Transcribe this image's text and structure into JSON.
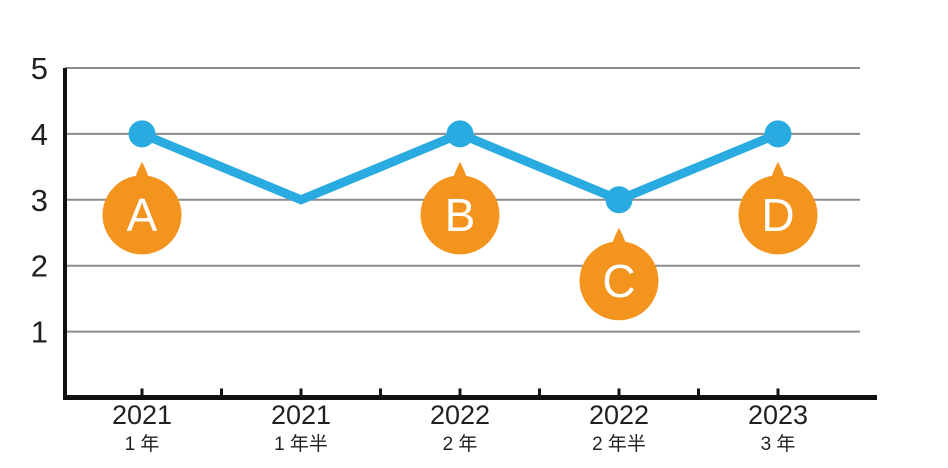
{
  "chart": {
    "background_color": "#ffffff"
  },
  "chart_data": {
    "type": "line",
    "x_categories": [
      {
        "year": "2021",
        "sub": "1 年"
      },
      {
        "year": "2021",
        "sub": "1 年半"
      },
      {
        "year": "2022",
        "sub": "2 年"
      },
      {
        "year": "2022",
        "sub": "2 年半"
      },
      {
        "year": "2023",
        "sub": "3 年"
      }
    ],
    "values": [
      4,
      3,
      4,
      3,
      4
    ],
    "markers": [
      true,
      false,
      true,
      true,
      true
    ],
    "callouts": [
      {
        "label": "A",
        "point_index": 0
      },
      {
        "label": "B",
        "point_index": 2
      },
      {
        "label": "C",
        "point_index": 3
      },
      {
        "label": "D",
        "point_index": 4
      }
    ],
    "title": "",
    "xlabel": "",
    "ylabel": "",
    "ylim": [
      0,
      5
    ],
    "yticks": [
      "1",
      "2",
      "3",
      "4",
      "5"
    ],
    "grid": true,
    "legend": "none",
    "colors": {
      "line": "#29abe2",
      "marker": "#29abe2",
      "callout": "#f3941e",
      "callout_text": "#ffffff",
      "grid": "#8c8c8c",
      "axis": "#111111",
      "tick_label": "#231f20"
    }
  }
}
